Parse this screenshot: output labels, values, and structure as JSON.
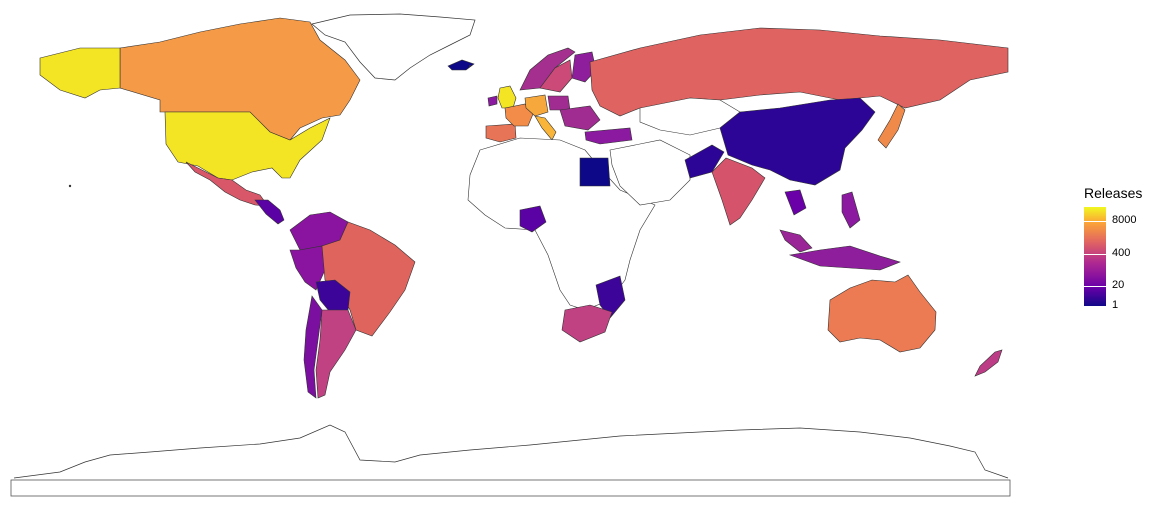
{
  "legend": {
    "title": "Releases",
    "ticks": [
      "8000",
      "400",
      "20",
      "1"
    ],
    "tick_values": [
      8000,
      400,
      20,
      1
    ],
    "scale": "log",
    "palette": [
      "#0d0887",
      "#6a00a8",
      "#b12a90",
      "#e16462",
      "#fca636",
      "#f0f921"
    ]
  },
  "countries": [
    {
      "name": "United States",
      "value": 8000,
      "color": "#f3e424"
    },
    {
      "name": "Alaska (United States)",
      "value": 8000,
      "color": "#f3e424"
    },
    {
      "name": "Canada",
      "value": 700,
      "color": "#f59a46"
    },
    {
      "name": "Mexico",
      "value": 180,
      "color": "#d8586a"
    },
    {
      "name": "Brazil",
      "value": 250,
      "color": "#e0645e"
    },
    {
      "name": "Argentina",
      "value": 60,
      "color": "#c04283"
    },
    {
      "name": "Chile",
      "value": 12,
      "color": "#7a0fa0"
    },
    {
      "name": "Colombia",
      "value": 14,
      "color": "#8a14a0"
    },
    {
      "name": "Peru",
      "value": 14,
      "color": "#8a14a0"
    },
    {
      "name": "Venezuela",
      "value": 14,
      "color": "#8a14a0"
    },
    {
      "name": "Bolivia",
      "value": 3,
      "color": "#3d049a"
    },
    {
      "name": "Russia",
      "value": 300,
      "color": "#de6361"
    },
    {
      "name": "China",
      "value": 2,
      "color": "#2c0596"
    },
    {
      "name": "India",
      "value": 150,
      "color": "#d5546c"
    },
    {
      "name": "Australia",
      "value": 500,
      "color": "#ec7a52"
    },
    {
      "name": "New Zealand",
      "value": 60,
      "color": "#bd3c86"
    },
    {
      "name": "Japan",
      "value": 600,
      "color": "#f08a4a"
    },
    {
      "name": "United Kingdom",
      "value": 8000,
      "color": "#f3e424"
    },
    {
      "name": "France",
      "value": 600,
      "color": "#f28c48"
    },
    {
      "name": "Italy",
      "value": 1500,
      "color": "#f8b53a"
    },
    {
      "name": "Germany",
      "value": 1200,
      "color": "#f6a83c"
    },
    {
      "name": "Spain",
      "value": 400,
      "color": "#e87458"
    },
    {
      "name": "Sweden",
      "value": 100,
      "color": "#cc4a77"
    },
    {
      "name": "Norway",
      "value": 40,
      "color": "#a42f8f"
    },
    {
      "name": "Finland",
      "value": 20,
      "color": "#8e1e9c"
    },
    {
      "name": "Poland",
      "value": 30,
      "color": "#a02c92"
    },
    {
      "name": "Turkey",
      "value": 15,
      "color": "#8b1aa0"
    },
    {
      "name": "Egypt",
      "value": 1,
      "color": "#0d0887"
    },
    {
      "name": "Nigeria",
      "value": 6,
      "color": "#5a02a3"
    },
    {
      "name": "South Africa",
      "value": 60,
      "color": "#c04283"
    },
    {
      "name": "Mozambique",
      "value": 3,
      "color": "#3d049a"
    },
    {
      "name": "Pakistan",
      "value": 2,
      "color": "#2c0596"
    },
    {
      "name": "Indonesia",
      "value": 20,
      "color": "#8e1e9c"
    },
    {
      "name": "Philippines",
      "value": 15,
      "color": "#8b1aa0"
    },
    {
      "name": "Thailand",
      "value": 8,
      "color": "#6a00a8"
    },
    {
      "name": "Malaysia",
      "value": 20,
      "color": "#9a2596"
    },
    {
      "name": "Iceland",
      "value": 1,
      "color": "#0d0887"
    },
    {
      "name": "Ireland",
      "value": 15,
      "color": "#8b1aa0"
    }
  ]
}
